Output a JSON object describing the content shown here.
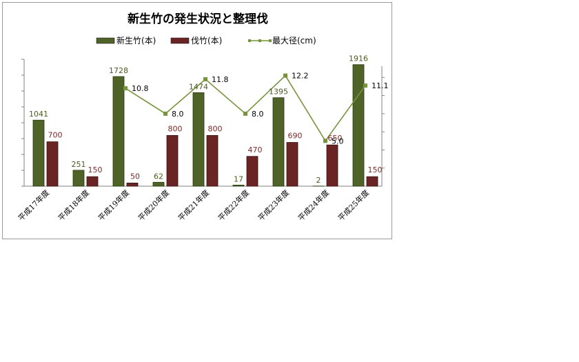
{
  "chart_data": {
    "type": "bar",
    "title": "新生竹の発生状況と整理伐",
    "categories": [
      "平成17年度",
      "平成18年度",
      "平成19年度",
      "平成20年度",
      "平成21年度",
      "平成22年度",
      "平成23年度",
      "平成24年度",
      "平成25年度"
    ],
    "series": [
      {
        "name": "新生竹(本)",
        "type": "bar",
        "axis": "left",
        "color": "#4f6228",
        "values": [
          1041,
          251,
          1728,
          62,
          1474,
          17,
          1395,
          2,
          1916
        ]
      },
      {
        "name": "伐竹(本)",
        "type": "bar",
        "axis": "left",
        "color": "#6b2424",
        "values": [
          700,
          150,
          50,
          800,
          800,
          470,
          690,
          650,
          150
        ]
      },
      {
        "name": "最大径(cm)",
        "type": "line",
        "axis": "right",
        "color": "#77933c",
        "values": [
          null,
          null,
          10.8,
          8.0,
          11.8,
          8.0,
          12.2,
          5.0,
          11.1
        ]
      }
    ],
    "data_labels": {
      "new": [
        "1041",
        "251",
        "1728",
        "62",
        "1474",
        "17",
        "1395",
        "2",
        "1916"
      ],
      "cut": [
        "700",
        "150",
        "50",
        "800",
        "800",
        "470",
        "690",
        "650",
        "150"
      ],
      "diameter": [
        "",
        "",
        "10.8",
        "8.0",
        "11.8",
        "8.0",
        "12.2",
        "5.0",
        "11.1"
      ]
    },
    "ylim_left": [
      0,
      2000
    ],
    "ylim_right": [
      0,
      14
    ],
    "legend_position": "top",
    "grid": false,
    "xlabel": "",
    "ylabel": ""
  }
}
